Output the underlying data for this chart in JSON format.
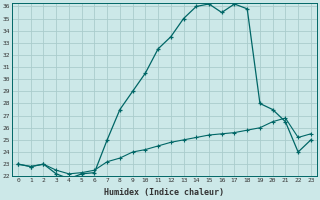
{
  "xlabel": "Humidex (Indice chaleur)",
  "background_color": "#cce8e8",
  "grid_color": "#aacccc",
  "line_color": "#006666",
  "x_min": 0,
  "x_max": 23,
  "y_min": 22,
  "y_max": 36,
  "curve1_x": [
    0,
    1,
    2,
    3,
    4,
    5,
    6,
    7,
    8,
    9,
    10,
    11,
    12,
    13,
    14,
    15,
    16,
    17,
    18,
    19,
    20,
    21,
    22,
    23
  ],
  "curve1_y": [
    23.0,
    22.8,
    23.0,
    22.2,
    21.8,
    22.2,
    22.3,
    25.0,
    27.5,
    29.0,
    30.5,
    32.5,
    33.5,
    35.0,
    36.0,
    36.2,
    35.5,
    36.2,
    35.8,
    28.0,
    27.5,
    26.5,
    24.0,
    25.0
  ],
  "curve2_x": [
    0,
    1,
    2,
    3,
    4,
    5,
    6,
    7,
    8,
    9,
    10,
    11,
    12,
    13,
    14,
    15,
    16,
    17,
    18,
    19,
    20,
    21,
    22,
    23
  ],
  "curve2_y": [
    23.0,
    22.8,
    23.0,
    22.5,
    22.2,
    22.3,
    22.5,
    23.2,
    23.5,
    24.0,
    24.2,
    24.5,
    24.8,
    25.0,
    25.2,
    25.4,
    25.5,
    25.6,
    25.8,
    26.0,
    26.5,
    26.8,
    25.2,
    25.5
  ],
  "ytick_values": [
    22,
    23,
    24,
    25,
    26,
    27,
    28,
    29,
    30,
    31,
    32,
    33,
    34,
    35,
    36
  ]
}
